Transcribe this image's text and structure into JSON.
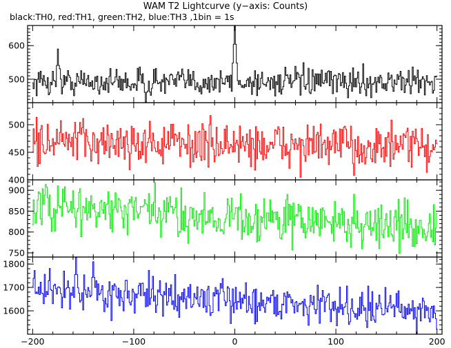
{
  "chart_data": {
    "type": "line",
    "title": "WAM T2 Lightcurve (y−axis: Counts)",
    "subtitle": "black:TH0, red:TH1, green:TH2, blue:TH3 ,1bin = 1s",
    "x_range": [
      -205,
      205
    ],
    "x_ticks": [
      -200,
      -100,
      0,
      100,
      200
    ],
    "x_tick_labels": [
      "−200",
      "−100",
      "0",
      "100",
      "200"
    ],
    "bin_seconds": 1,
    "panels": [
      {
        "series_name": "TH0",
        "color": "#000000",
        "ylim": [
          430,
          660
        ],
        "y_ticks": [
          500,
          600
        ],
        "y_tick_labels": [
          "500",
          "600"
        ],
        "mean": 492,
        "noise_sigma": 20,
        "trend_end": 0,
        "features": [
          {
            "x": 0,
            "value": 660,
            "width_bins": 2,
            "description": "burst peak"
          },
          {
            "x": -175,
            "value": 590
          },
          {
            "x": -88,
            "value": 430
          }
        ]
      },
      {
        "series_name": "TH1",
        "color": "#ff0000",
        "ylim": [
          400,
          540
        ],
        "y_ticks": [
          400,
          450,
          500
        ],
        "y_tick_labels": [
          "400",
          "450",
          "500"
        ],
        "mean": 470,
        "noise_sigma": 20,
        "trend_end": -12,
        "features": []
      },
      {
        "series_name": "TH2",
        "color": "#00ee00",
        "ylim": [
          740,
          925
        ],
        "y_ticks": [
          750,
          800,
          850,
          900
        ],
        "y_tick_labels": [
          "750",
          "800",
          "850",
          "900"
        ],
        "mean": 860,
        "noise_sigma": 28,
        "trend_end": -50,
        "features": []
      },
      {
        "series_name": "TH3",
        "color": "#0000ff",
        "ylim": [
          1500,
          1830
        ],
        "y_ticks": [
          1600,
          1700,
          1800
        ],
        "y_tick_labels": [
          "1600",
          "1700",
          "1800"
        ],
        "mean": 1690,
        "noise_sigma": 38,
        "trend_end": -90,
        "features": [
          {
            "x": -140,
            "value": 1810
          },
          {
            "x": -157,
            "value": 1830
          }
        ]
      }
    ]
  }
}
